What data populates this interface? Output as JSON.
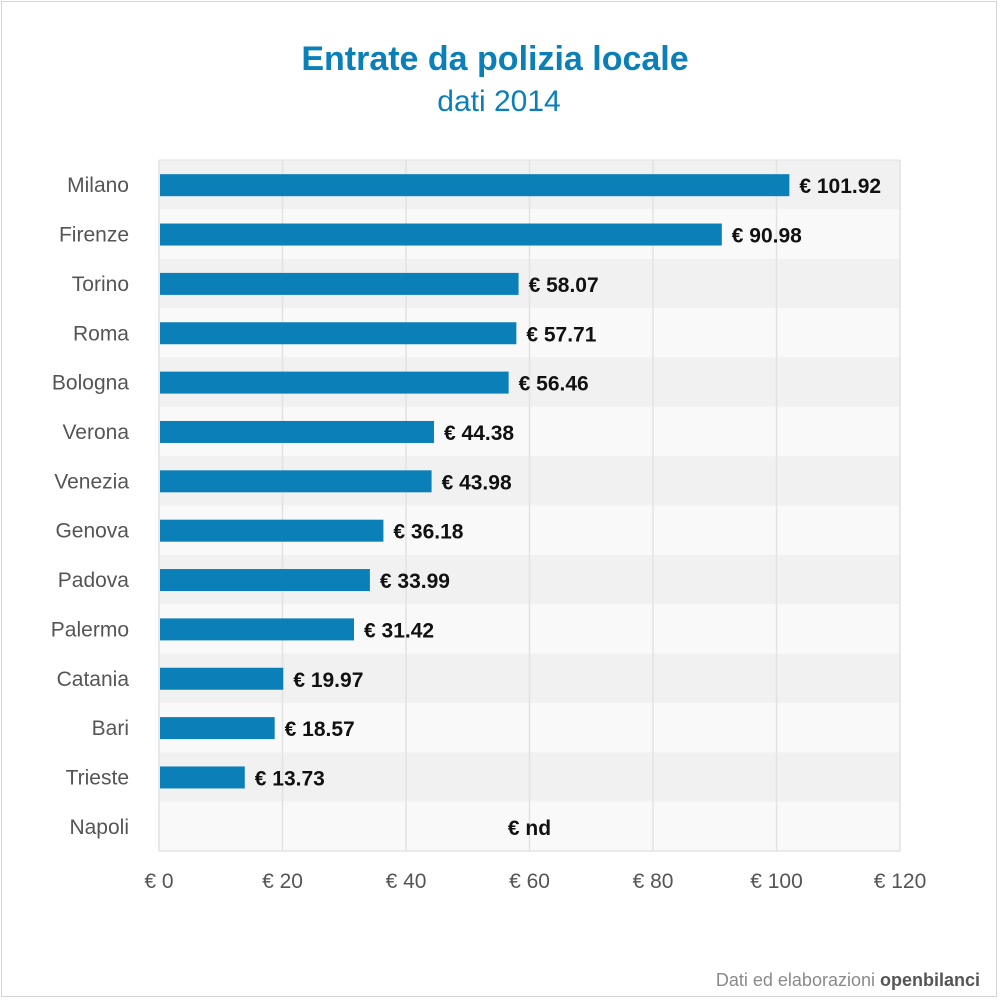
{
  "chart_data": {
    "type": "bar",
    "orientation": "horizontal",
    "title": "Entrate da polizia locale",
    "subtitle": "dati 2014",
    "categories": [
      "Milano",
      "Firenze",
      "Torino",
      "Roma",
      "Bologna",
      "Verona",
      "Venezia",
      "Genova",
      "Padova",
      "Palermo",
      "Catania",
      "Bari",
      "Trieste",
      "Napoli"
    ],
    "values": [
      101.92,
      90.98,
      58.07,
      57.71,
      56.46,
      44.38,
      43.98,
      36.18,
      33.99,
      31.42,
      19.97,
      18.57,
      13.73,
      null
    ],
    "value_labels": [
      "€ 101.92",
      "€ 90.98",
      "€ 58.07",
      "€ 57.71",
      "€ 56.46",
      "€ 44.38",
      "€ 43.98",
      "€ 36.18",
      "€ 33.99",
      "€ 31.42",
      "€ 19.97",
      "€ 18.57",
      "€ 13.73",
      "€ nd"
    ],
    "xlim": [
      0,
      120
    ],
    "x_ticks": [
      0,
      20,
      40,
      60,
      80,
      100,
      120
    ],
    "x_tick_labels": [
      "€ 0",
      "€ 20",
      "€ 40",
      "€ 60",
      "€ 80",
      "€ 100",
      "€ 120"
    ],
    "grid": true,
    "missing_value_x": 60
  },
  "colors": {
    "bar": "#0a7fb8",
    "title": "#0a7fb8",
    "band_dark": "#f1f1f1",
    "band_light": "#f9f9f9",
    "grid": "#e2e2e2"
  },
  "credit": {
    "prefix": "Dati ed elaborazioni ",
    "brand": "openbilanci"
  }
}
